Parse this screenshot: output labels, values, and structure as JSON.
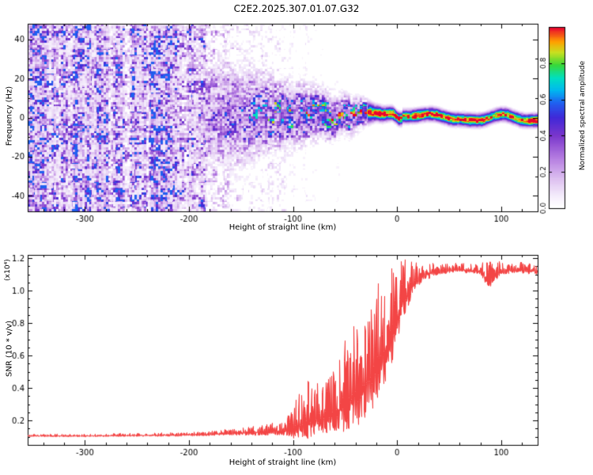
{
  "chart_data": [
    {
      "id": "spectrogram",
      "type": "heatmap",
      "title": "C2E2.2025.307.01.07.G32",
      "xlabel": "Height of straight line (km)",
      "ylabel": "Frequency (Hz)",
      "xlim": [
        -355,
        135
      ],
      "ylim": [
        -48,
        48
      ],
      "xticks": [
        -300,
        -200,
        -100,
        0,
        100
      ],
      "yticks": [
        -40,
        -20,
        0,
        20,
        40
      ],
      "xminor_step": 20,
      "yminor_step": 10,
      "colorbar": {
        "label": "Normalized spectral amplitude",
        "lim": [
          0,
          1
        ],
        "ticks": [
          0.0,
          0.2,
          0.4,
          0.6,
          0.8
        ]
      },
      "colormap_stops": [
        [
          0.0,
          "#ffffff"
        ],
        [
          0.06,
          "#f6effc"
        ],
        [
          0.16,
          "#ddc0f0"
        ],
        [
          0.28,
          "#b37ae0"
        ],
        [
          0.4,
          "#7a36cc"
        ],
        [
          0.5,
          "#4028d8"
        ],
        [
          0.58,
          "#2060f0"
        ],
        [
          0.65,
          "#00b8f0"
        ],
        [
          0.72,
          "#00e0c0"
        ],
        [
          0.79,
          "#38d838"
        ],
        [
          0.86,
          "#c8e020"
        ],
        [
          0.92,
          "#ffa000"
        ],
        [
          1.0,
          "#e80030"
        ]
      ],
      "structure": {
        "description": "Broadband purple speckle noise for heights < -190 km; spectral power concentrates into a band around 0 Hz that narrows and intensifies toward 0 km, becoming a thin continuous red/green line with purple fringe for heights > -20 km",
        "band_center_hz": 0,
        "band_sigma_hz": [
          [
            -355,
            26
          ],
          [
            -200,
            22
          ],
          [
            -160,
            16
          ],
          [
            -120,
            11
          ],
          [
            -90,
            8
          ],
          [
            -60,
            6
          ],
          [
            -40,
            4.5
          ],
          [
            -20,
            2.2
          ],
          [
            0,
            1.9
          ],
          [
            135,
            1.9
          ]
        ],
        "band_amp": [
          [
            -355,
            0.0
          ],
          [
            -210,
            0.05
          ],
          [
            -185,
            0.35
          ],
          [
            -160,
            0.5
          ],
          [
            -130,
            0.55
          ],
          [
            -100,
            0.65
          ],
          [
            -70,
            0.8
          ],
          [
            -45,
            0.9
          ],
          [
            -20,
            1.0
          ],
          [
            135,
            1.0
          ]
        ],
        "background_noise_amp": [
          [
            -355,
            0.42
          ],
          [
            -195,
            0.42
          ],
          [
            -183,
            0.22
          ],
          [
            -160,
            0.12
          ],
          [
            -120,
            0.07
          ],
          [
            -80,
            0.03
          ],
          [
            -40,
            0.01
          ],
          [
            0,
            0.0
          ],
          [
            135,
            0.0
          ]
        ]
      },
      "seed": 1337
    },
    {
      "id": "snr",
      "type": "line",
      "xlabel": "Height of straight line (km)",
      "ylabel": "SNR (10 * v/v)",
      "multiplier_label": "(x10⁴)",
      "line_color": "#f23535",
      "xlim": [
        -355,
        135
      ],
      "ylim": [
        0.05,
        1.22
      ],
      "xticks": [
        -300,
        -200,
        -100,
        0,
        100
      ],
      "yticks": [
        0.2,
        0.4,
        0.6,
        0.8,
        1.0,
        1.2
      ],
      "xminor_step": 20,
      "yminor_step": 0.05,
      "envelope_points": [
        [
          -355,
          0.105,
          0.012
        ],
        [
          -300,
          0.105,
          0.013
        ],
        [
          -250,
          0.108,
          0.015
        ],
        [
          -210,
          0.11,
          0.018
        ],
        [
          -180,
          0.115,
          0.022
        ],
        [
          -160,
          0.12,
          0.032
        ],
        [
          -140,
          0.125,
          0.04
        ],
        [
          -120,
          0.13,
          0.055
        ],
        [
          -105,
          0.14,
          0.09
        ],
        [
          -95,
          0.16,
          0.2
        ],
        [
          -85,
          0.19,
          0.26
        ],
        [
          -75,
          0.21,
          0.22
        ],
        [
          -65,
          0.22,
          0.24
        ],
        [
          -55,
          0.27,
          0.38
        ],
        [
          -45,
          0.32,
          0.42
        ],
        [
          -35,
          0.38,
          0.5
        ],
        [
          -25,
          0.47,
          0.55
        ],
        [
          -15,
          0.58,
          0.52
        ],
        [
          -5,
          0.72,
          0.45
        ],
        [
          5,
          0.92,
          0.28
        ],
        [
          15,
          1.03,
          0.15
        ],
        [
          25,
          1.09,
          0.08
        ],
        [
          40,
          1.12,
          0.055
        ],
        [
          60,
          1.13,
          0.045
        ],
        [
          80,
          1.12,
          0.05
        ],
        [
          88,
          1.06,
          0.13
        ],
        [
          95,
          1.1,
          0.08
        ],
        [
          110,
          1.13,
          0.05
        ],
        [
          135,
          1.12,
          0.05
        ]
      ],
      "seed": 2025
    }
  ]
}
